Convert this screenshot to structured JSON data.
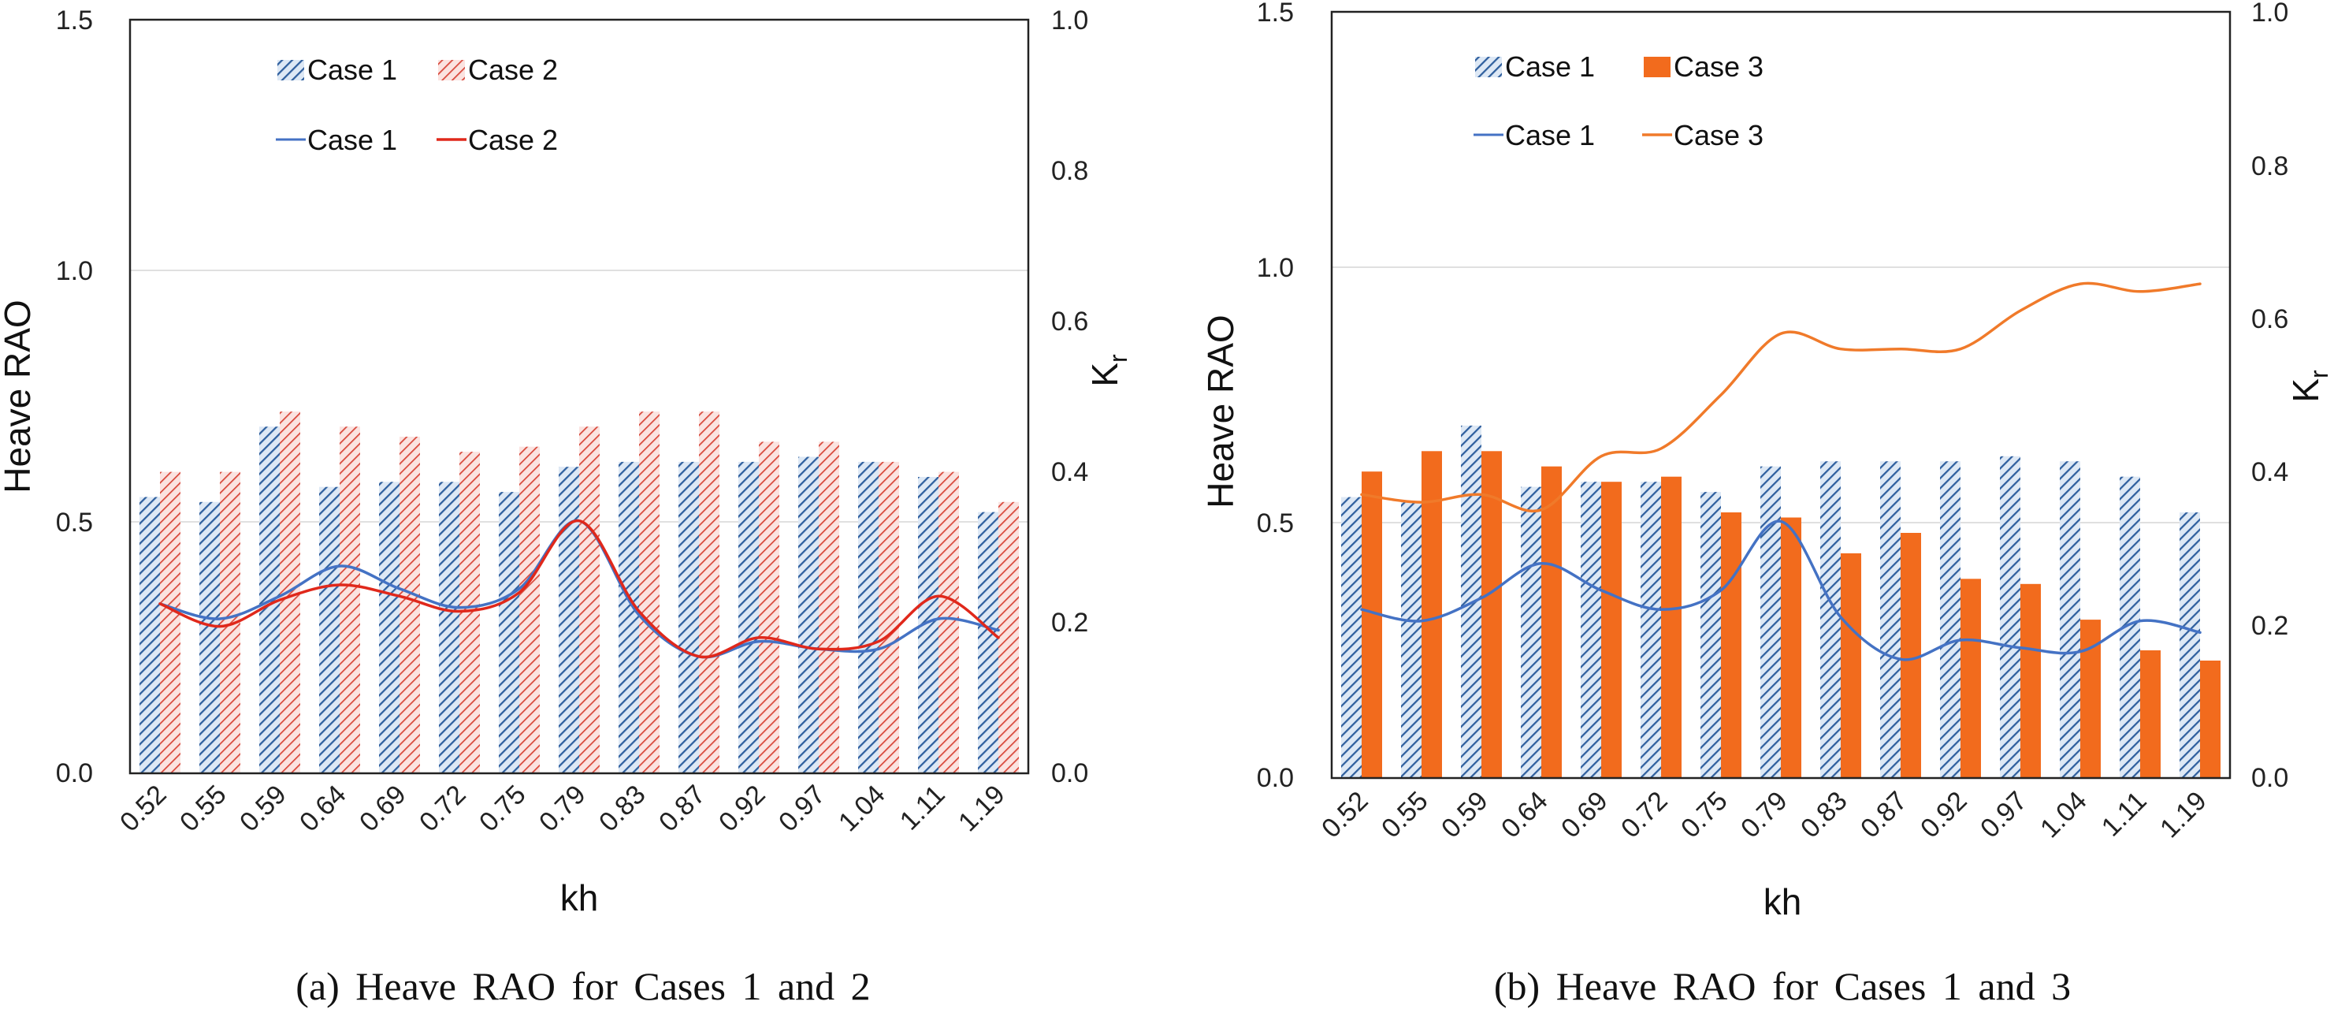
{
  "colors": {
    "case1_bar_stroke": "#2f5f9e",
    "case1_bar_fill": "#dde8f5",
    "case2_bar_stroke": "#d8483b",
    "case2_bar_fill": "#fbe3e0",
    "case3_bar_fill": "#f26b1d",
    "case1_line": "#4472c4",
    "case2_line": "#e0281b",
    "case3_line": "#f07a2a",
    "gridline": "#e0e0e0",
    "axis": "#222222"
  },
  "chart_data": [
    {
      "type": "bar+line",
      "caption": "(a) Heave RAO for Cases 1 and 2",
      "xlabel": "kh",
      "ylabel": "Heave RAO",
      "y2label": "K",
      "y2label_sub": "r",
      "categories": [
        "0.52",
        "0.55",
        "0.59",
        "0.64",
        "0.69",
        "0.72",
        "0.75",
        "0.79",
        "0.83",
        "0.87",
        "0.92",
        "0.97",
        "1.04",
        "1.11",
        "1.19"
      ],
      "ylim": [
        0,
        1.5
      ],
      "yticks": [
        "0.0",
        "0.5",
        "1.0",
        "1.5"
      ],
      "y2lim": [
        0,
        1.0
      ],
      "y2ticks": [
        "0.0",
        "0.2",
        "0.4",
        "0.6",
        "0.8",
        "1.0"
      ],
      "grid": true,
      "legend": {
        "placement": "top-left",
        "bars": [
          "Case 1",
          "Case 2"
        ],
        "lines": [
          "Case 1",
          "Case 2"
        ]
      },
      "bar_series": [
        {
          "name": "Case 1",
          "style": "hatch-blue",
          "values": [
            0.55,
            0.54,
            0.69,
            0.57,
            0.58,
            0.58,
            0.56,
            0.61,
            0.62,
            0.62,
            0.62,
            0.63,
            0.62,
            0.59,
            0.52
          ]
        },
        {
          "name": "Case 2",
          "style": "hatch-red",
          "values": [
            0.6,
            0.6,
            0.72,
            0.69,
            0.67,
            0.64,
            0.65,
            0.69,
            0.72,
            0.72,
            0.66,
            0.66,
            0.62,
            0.6,
            0.54
          ]
        }
      ],
      "line_series": [
        {
          "name": "Case 1",
          "color": "#4472c4",
          "values": [
            0.225,
            0.205,
            0.235,
            0.275,
            0.245,
            0.22,
            0.245,
            0.335,
            0.21,
            0.155,
            0.175,
            0.165,
            0.165,
            0.205,
            0.19
          ]
        },
        {
          "name": "Case 2",
          "color": "#e0281b",
          "values": [
            0.225,
            0.195,
            0.23,
            0.25,
            0.235,
            0.215,
            0.24,
            0.335,
            0.215,
            0.155,
            0.18,
            0.165,
            0.175,
            0.235,
            0.18
          ]
        }
      ]
    },
    {
      "type": "bar+line",
      "caption": "(b) Heave RAO for Cases 1 and 3",
      "xlabel": "kh",
      "ylabel": "Heave RAO",
      "y2label": "K",
      "y2label_sub": "r",
      "categories": [
        "0.52",
        "0.55",
        "0.59",
        "0.64",
        "0.69",
        "0.72",
        "0.75",
        "0.79",
        "0.83",
        "0.87",
        "0.92",
        "0.97",
        "1.04",
        "1.11",
        "1.19"
      ],
      "ylim": [
        0,
        1.5
      ],
      "yticks": [
        "0.0",
        "0.5",
        "1.0",
        "1.5"
      ],
      "y2lim": [
        0,
        1.0
      ],
      "y2ticks": [
        "0.0",
        "0.2",
        "0.4",
        "0.6",
        "0.8",
        "1.0"
      ],
      "grid": true,
      "legend": {
        "placement": "top-left",
        "bars": [
          "Case 1",
          "Case 3"
        ],
        "lines": [
          "Case 1",
          "Case 3"
        ]
      },
      "bar_series": [
        {
          "name": "Case 1",
          "style": "hatch-blue",
          "values": [
            0.55,
            0.54,
            0.69,
            0.57,
            0.58,
            0.58,
            0.56,
            0.61,
            0.62,
            0.62,
            0.62,
            0.63,
            0.62,
            0.59,
            0.52
          ]
        },
        {
          "name": "Case 3",
          "style": "solid-orange",
          "values": [
            0.6,
            0.64,
            0.64,
            0.61,
            0.58,
            0.59,
            0.52,
            0.51,
            0.44,
            0.48,
            0.39,
            0.38,
            0.31,
            0.25,
            0.23
          ]
        }
      ],
      "line_series": [
        {
          "name": "Case 1",
          "color": "#4472c4",
          "values": [
            0.22,
            0.205,
            0.235,
            0.28,
            0.245,
            0.22,
            0.245,
            0.335,
            0.21,
            0.155,
            0.18,
            0.17,
            0.165,
            0.205,
            0.19
          ]
        },
        {
          "name": "Case 3",
          "color": "#f07a2a",
          "values": [
            0.37,
            0.36,
            0.37,
            0.35,
            0.42,
            0.43,
            0.5,
            0.58,
            0.56,
            0.56,
            0.56,
            0.61,
            0.645,
            0.635,
            0.645
          ]
        }
      ]
    }
  ]
}
